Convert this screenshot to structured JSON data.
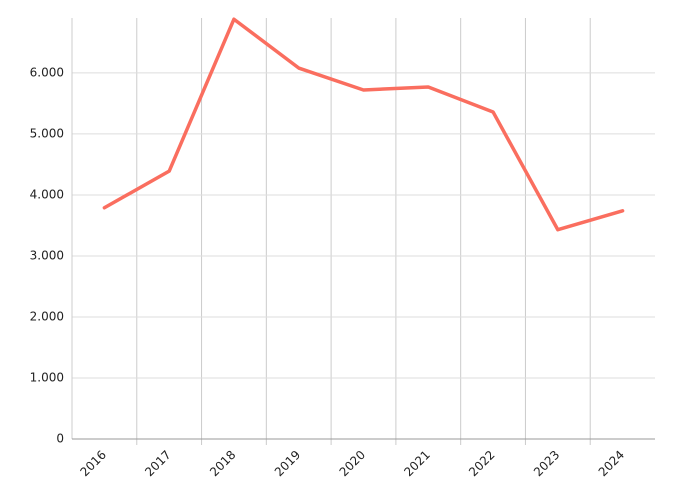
{
  "chart_data": {
    "type": "line",
    "categories": [
      "2016",
      "2017",
      "2018",
      "2019",
      "2020",
      "2021",
      "2022",
      "2023",
      "2024"
    ],
    "values": [
      3790,
      4390,
      6880,
      6080,
      5720,
      5770,
      5360,
      3430,
      3740
    ],
    "color": "#fa6e5f",
    "ylim": [
      0,
      6900
    ],
    "yticks": [
      0,
      {
        "value": 1000,
        "label": "1.000"
      },
      {
        "value": 2000,
        "label": "2.000"
      },
      {
        "value": 3000,
        "label": "3.000"
      },
      {
        "value": 4000,
        "label": "4.000"
      },
      {
        "value": 5000,
        "label": "5.000"
      },
      {
        "value": 6000,
        "label": "6.000"
      }
    ],
    "grid": true
  }
}
